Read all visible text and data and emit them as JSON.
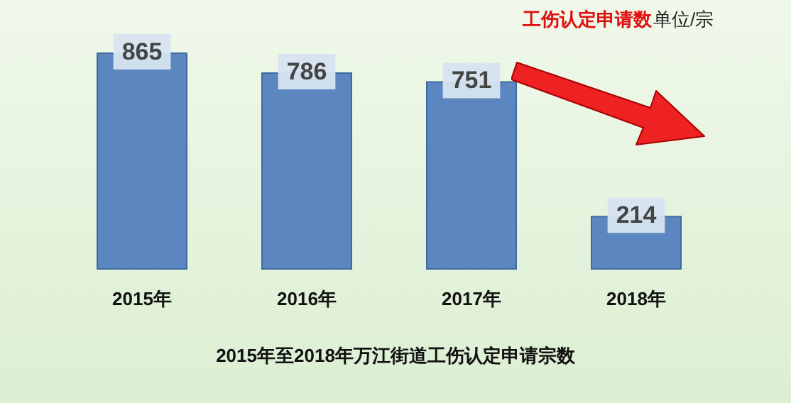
{
  "chart_data": {
    "type": "bar",
    "title": "2015年至2018年万江街道工伤认定申请宗数",
    "annotations": [
      "工伤认定申请数",
      "单位/宗"
    ],
    "categories": [
      "2015年",
      "2016年",
      "2017年",
      "2018年"
    ],
    "values": [
      865,
      786,
      751,
      214
    ],
    "color": "#5b86c0",
    "data_labels": true
  }
}
